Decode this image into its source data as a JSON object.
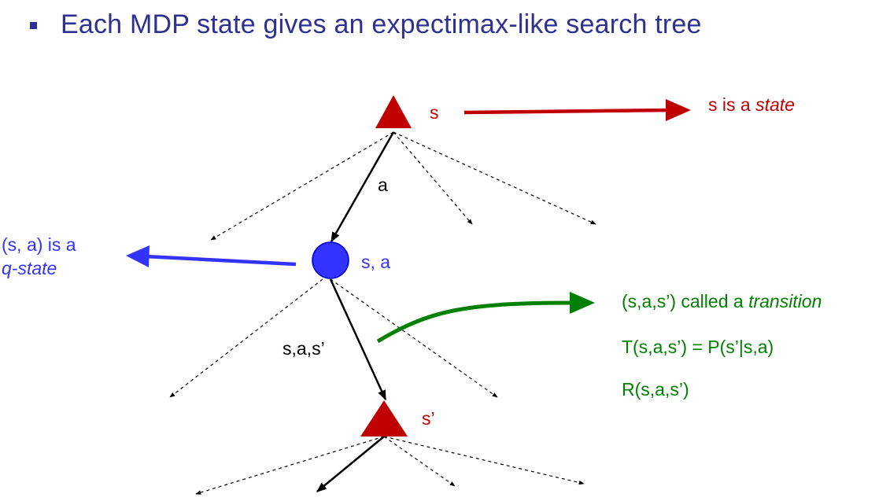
{
  "heading": "Each MDP state gives an expectimax-like search tree",
  "nodes": {
    "root_label": "s",
    "qstate_label": "s, a",
    "next_label": "s’"
  },
  "edges": {
    "action_label": "a",
    "transition_label": "s,a,s’"
  },
  "annotations": {
    "state_prefix": "s is a ",
    "state_term": "state",
    "qstate_line1": "(s, a) is a",
    "qstate_term": "q-state",
    "transition_prefix": "(s,a,s’) called a ",
    "transition_term": "transition",
    "transition_formula": "T(s,a,s’) = P(s’|s,a)",
    "reward_formula": "R(s,a,s’)"
  },
  "colors": {
    "heading": "#2e3192",
    "state": "#c00000",
    "qstate": "#3333ff",
    "transition": "#008000",
    "edges": "#000000"
  }
}
